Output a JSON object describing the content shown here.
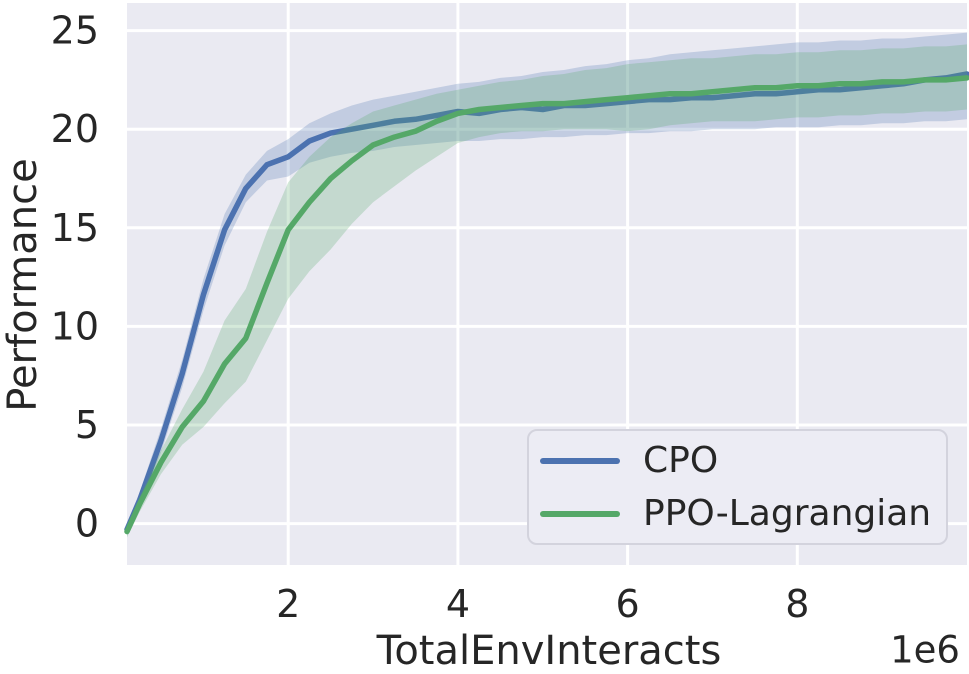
{
  "colors": {
    "page_background": "#FFFFFF",
    "axes_background": "#EAEAF2",
    "grid": "#FFFFFF",
    "text": "#262626",
    "cpo_line": "#4C72B0",
    "ppo_line": "#55A868",
    "legend_background": "#ECECF4",
    "legend_border": "#D3D3DD"
  },
  "chart_data": {
    "type": "line",
    "title": "",
    "xlabel": "TotalEnvInteracts",
    "ylabel": "Performance",
    "x_offset_label": "1e6",
    "x_unit": 1000000,
    "grid": true,
    "legend_position": "lower right",
    "xlim": [
      0.1,
      10.0
    ],
    "ylim": [
      -2.1,
      26.4
    ],
    "x_ticks": [
      2,
      4,
      6,
      8
    ],
    "y_ticks": [
      0,
      5,
      10,
      15,
      20,
      25
    ],
    "band_opacity": 0.25,
    "x": [
      0.1,
      0.25,
      0.5,
      0.75,
      1.0,
      1.25,
      1.5,
      1.75,
      2.0,
      2.25,
      2.5,
      2.75,
      3.0,
      3.25,
      3.5,
      3.75,
      4.0,
      4.25,
      4.5,
      4.75,
      5.0,
      5.25,
      5.5,
      5.75,
      6.0,
      6.25,
      6.5,
      6.75,
      7.0,
      7.25,
      7.5,
      7.75,
      8.0,
      8.25,
      8.5,
      8.75,
      9.0,
      9.25,
      9.5,
      9.75,
      10.0
    ],
    "series": [
      {
        "name": "CPO",
        "color": "#4C72B0",
        "values": [
          -0.3,
          1.2,
          4.2,
          7.6,
          11.6,
          14.9,
          17.0,
          18.2,
          18.6,
          19.4,
          19.8,
          20.0,
          20.2,
          20.4,
          20.5,
          20.7,
          20.9,
          20.8,
          21.0,
          21.1,
          21.0,
          21.2,
          21.2,
          21.3,
          21.4,
          21.5,
          21.5,
          21.6,
          21.6,
          21.7,
          21.8,
          21.8,
          21.9,
          22.0,
          22.0,
          22.1,
          22.2,
          22.3,
          22.5,
          22.6,
          22.8
        ],
        "band_low": [
          -0.6,
          0.8,
          3.6,
          6.9,
          10.8,
          14.1,
          16.3,
          17.4,
          17.6,
          18.3,
          18.6,
          18.8,
          18.9,
          19.1,
          19.2,
          19.3,
          19.4,
          19.4,
          19.5,
          19.5,
          19.6,
          19.6,
          19.7,
          19.7,
          19.8,
          19.8,
          19.9,
          19.9,
          20.0,
          20.0,
          20.0,
          20.1,
          20.1,
          20.1,
          20.2,
          20.2,
          20.3,
          20.3,
          20.4,
          20.4,
          20.5
        ],
        "band_high": [
          0.0,
          1.6,
          4.8,
          8.3,
          12.4,
          15.7,
          17.7,
          18.9,
          19.5,
          20.3,
          20.8,
          21.2,
          21.5,
          21.7,
          21.9,
          22.1,
          22.3,
          22.4,
          22.6,
          22.7,
          22.9,
          23.0,
          23.2,
          23.3,
          23.5,
          23.6,
          23.8,
          23.9,
          24.0,
          24.1,
          24.2,
          24.3,
          24.4,
          24.4,
          24.5,
          24.5,
          24.6,
          24.6,
          24.7,
          24.8,
          24.9
        ]
      },
      {
        "name": "PPO-Lagrangian",
        "color": "#55A868",
        "values": [
          -0.4,
          1.0,
          3.1,
          4.9,
          6.2,
          8.1,
          9.4,
          12.2,
          14.9,
          16.3,
          17.5,
          18.4,
          19.2,
          19.6,
          19.9,
          20.4,
          20.8,
          21.0,
          21.1,
          21.2,
          21.3,
          21.3,
          21.4,
          21.5,
          21.6,
          21.7,
          21.8,
          21.8,
          21.9,
          22.0,
          22.1,
          22.1,
          22.2,
          22.2,
          22.3,
          22.3,
          22.4,
          22.4,
          22.5,
          22.5,
          22.6
        ],
        "band_low": [
          -0.7,
          0.6,
          2.5,
          4.0,
          4.9,
          6.1,
          7.2,
          9.3,
          11.4,
          12.8,
          13.9,
          15.2,
          16.3,
          17.1,
          17.9,
          18.6,
          19.3,
          19.6,
          19.8,
          19.9,
          19.9,
          20.0,
          20.0,
          20.0,
          19.9,
          20.0,
          20.2,
          20.3,
          20.4,
          20.4,
          20.4,
          20.5,
          20.6,
          20.6,
          20.7,
          20.7,
          20.8,
          20.8,
          20.9,
          20.9,
          21.0
        ],
        "band_high": [
          -0.1,
          1.4,
          3.7,
          5.8,
          7.7,
          10.3,
          11.9,
          14.8,
          17.3,
          18.6,
          19.6,
          20.3,
          20.9,
          21.2,
          21.5,
          21.8,
          22.0,
          22.2,
          22.4,
          22.5,
          22.7,
          22.8,
          23.0,
          23.1,
          23.3,
          23.4,
          23.5,
          23.6,
          23.6,
          23.7,
          23.8,
          23.8,
          23.9,
          23.9,
          24.0,
          24.0,
          24.1,
          24.1,
          24.2,
          24.2,
          24.3
        ]
      }
    ]
  }
}
